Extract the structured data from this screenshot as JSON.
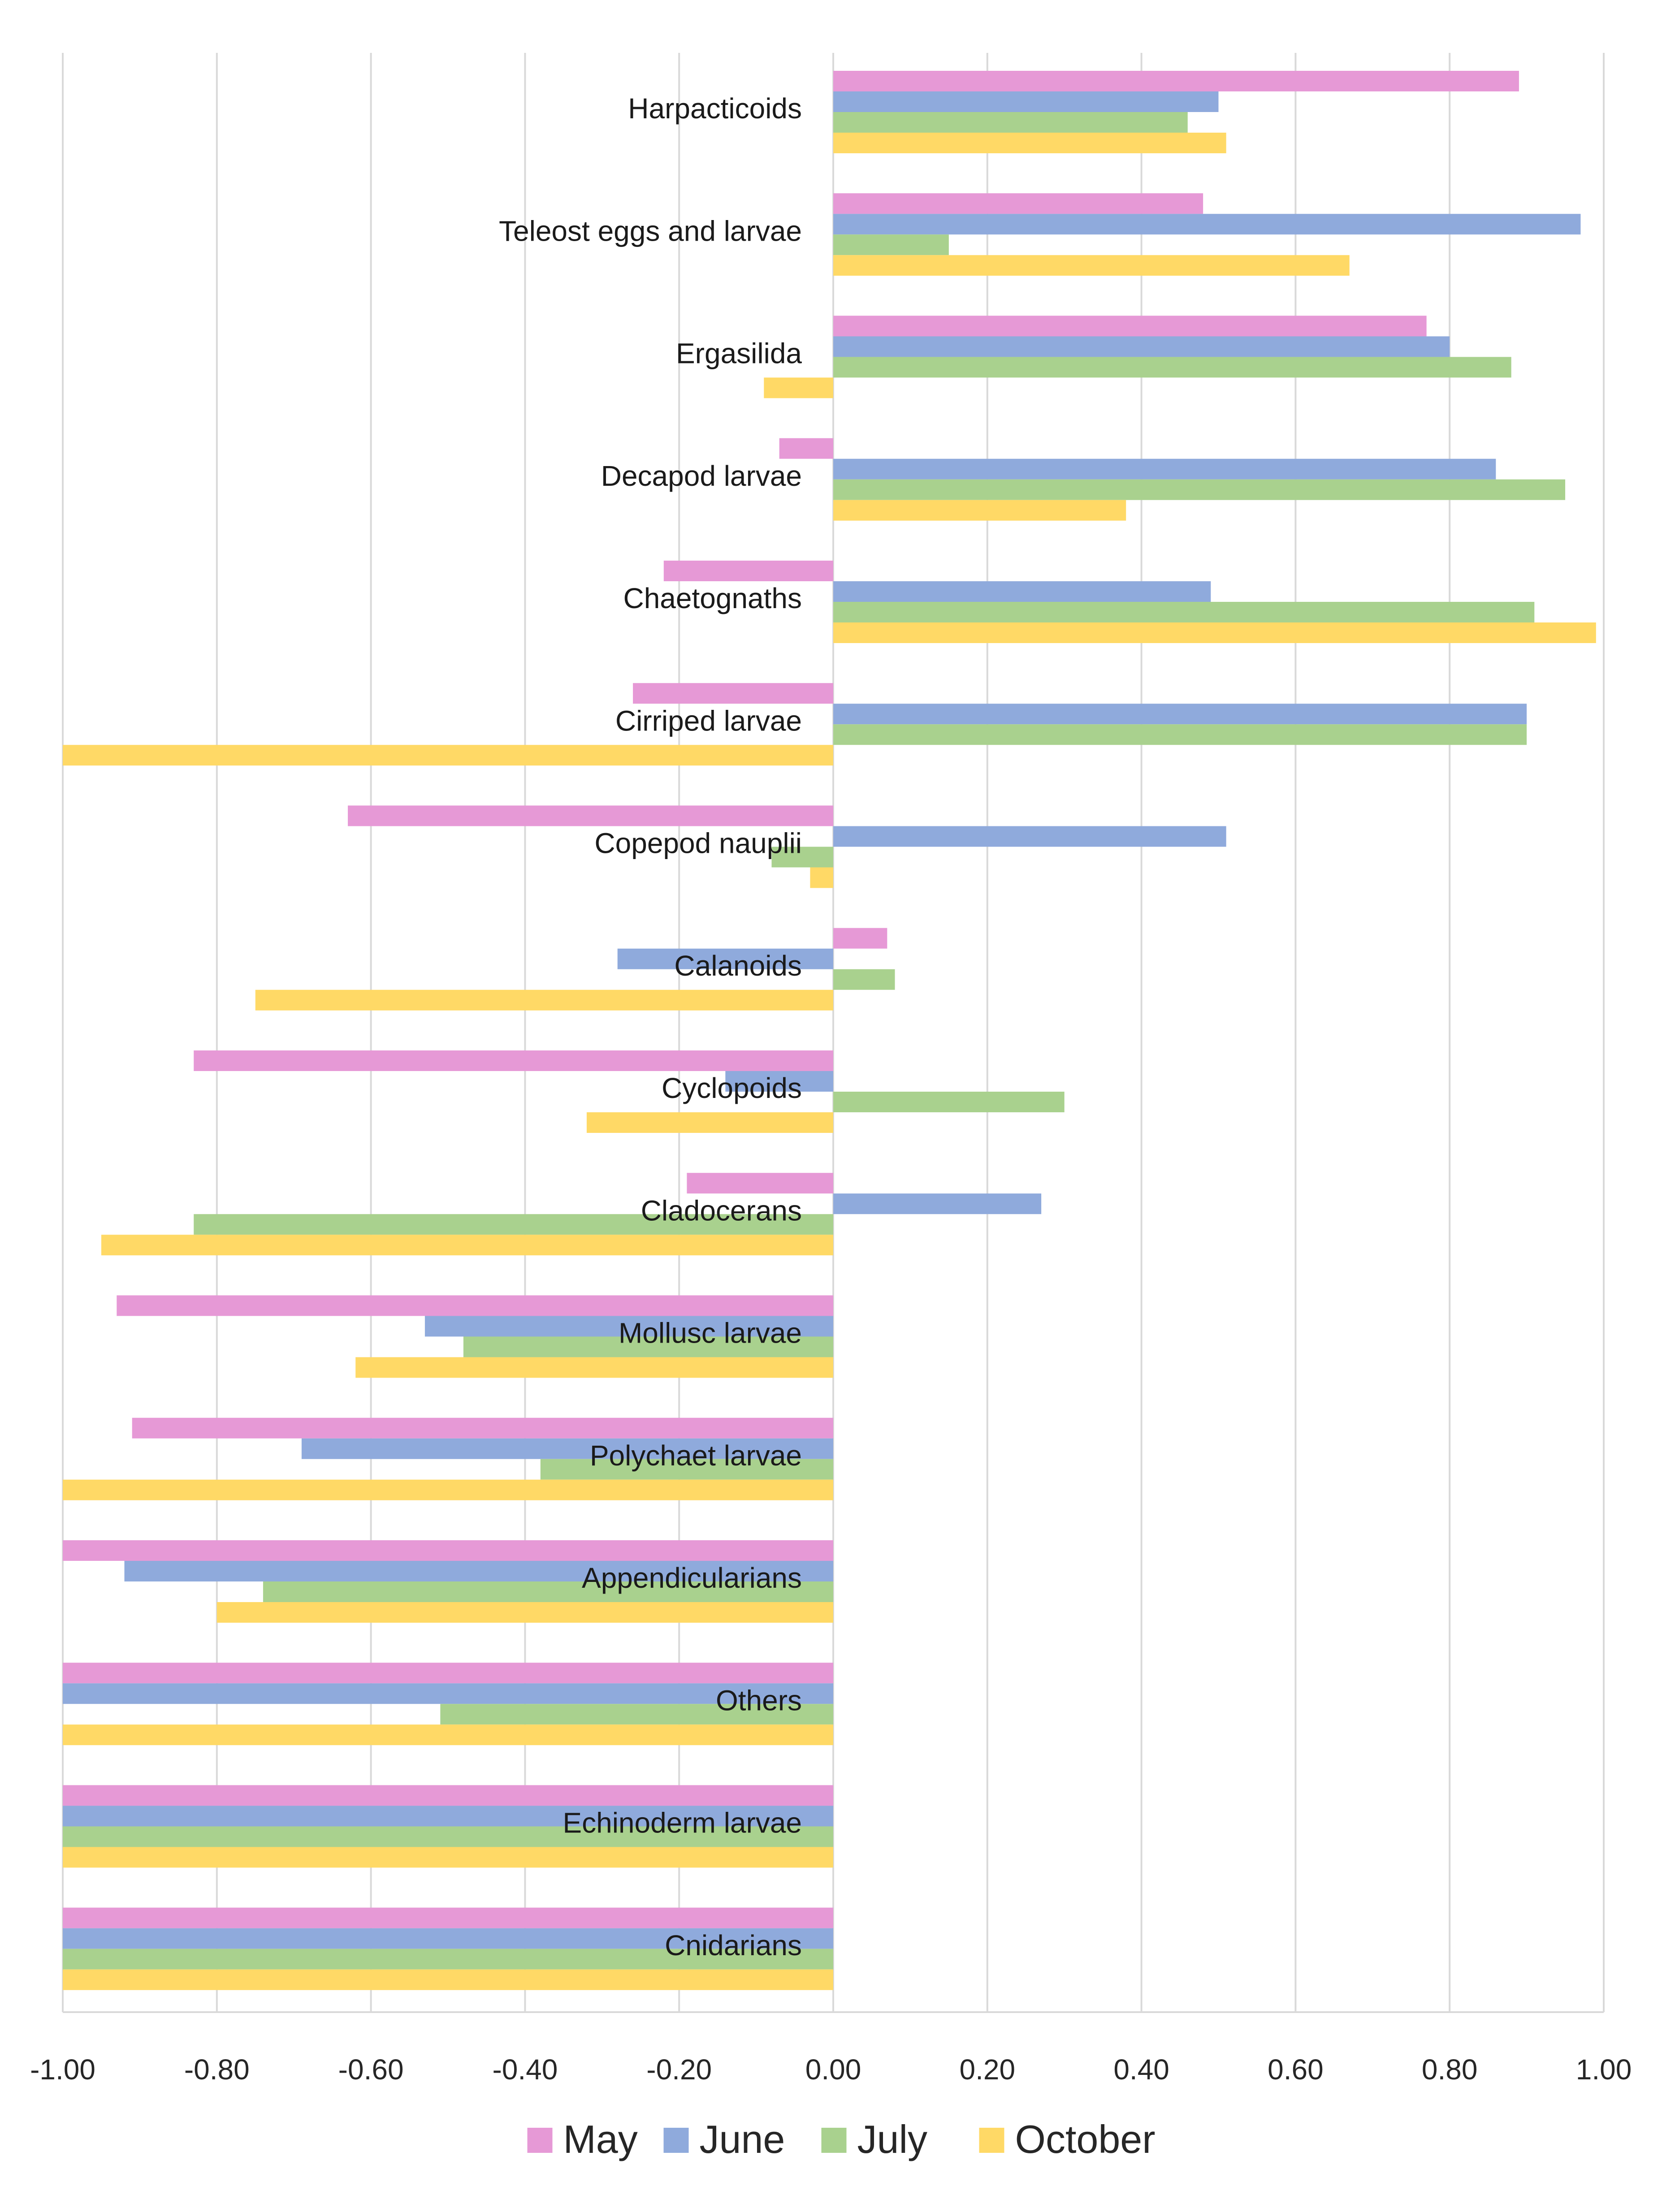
{
  "chart_data": {
    "type": "bar",
    "orientation": "horizontal",
    "title": "",
    "xlabel": "",
    "ylabel": "",
    "xlim": [
      -1.0,
      1.0
    ],
    "xticks": [
      "-1.00",
      "-0.80",
      "-0.60",
      "-0.40",
      "-0.20",
      "0.00",
      "0.20",
      "0.40",
      "0.60",
      "0.80",
      "1.00"
    ],
    "xtick_values": [
      -1.0,
      -0.8,
      -0.6,
      -0.4,
      -0.2,
      0.0,
      0.2,
      0.4,
      0.6,
      0.8,
      1.0
    ],
    "grid": true,
    "legend_position": "bottom",
    "categories": [
      "Harpacticoids",
      "Teleost eggs and larvae",
      "Ergasilida",
      "Decapod larvae",
      "Chaetognaths",
      "Cirriped larvae",
      "Copepod nauplii",
      "Calanoids",
      "Cyclopoids",
      "Cladocerans",
      "Mollusc larvae",
      "Polychaet larvae",
      "Appendicularians",
      "Others",
      "Echinoderm larvae",
      "Cnidarians"
    ],
    "series": [
      {
        "name": "May",
        "color": "#e699d6",
        "values": [
          0.89,
          0.48,
          0.77,
          -0.07,
          -0.22,
          -0.26,
          -0.63,
          0.07,
          -0.83,
          -0.19,
          -0.93,
          -0.91,
          -1.0,
          -1.0,
          -1.0,
          -1.0
        ]
      },
      {
        "name": "June",
        "color": "#8faadc",
        "values": [
          0.5,
          0.97,
          0.8,
          0.86,
          0.49,
          0.9,
          0.51,
          -0.28,
          -0.14,
          0.27,
          -0.53,
          -0.69,
          -0.92,
          -1.0,
          -1.0,
          -1.0
        ]
      },
      {
        "name": "July",
        "color": "#a9d18e",
        "values": [
          0.46,
          0.15,
          0.88,
          0.95,
          0.91,
          0.9,
          -0.08,
          0.08,
          0.3,
          -0.83,
          -0.48,
          -0.38,
          -0.74,
          -0.51,
          -1.0,
          -1.0
        ]
      },
      {
        "name": "October",
        "color": "#ffd966",
        "values": [
          0.51,
          0.67,
          -0.09,
          0.38,
          0.99,
          -1.0,
          -0.03,
          -0.75,
          -0.32,
          -0.95,
          -0.62,
          -1.0,
          -0.8,
          -1.0,
          -1.0,
          -1.0
        ]
      }
    ]
  }
}
